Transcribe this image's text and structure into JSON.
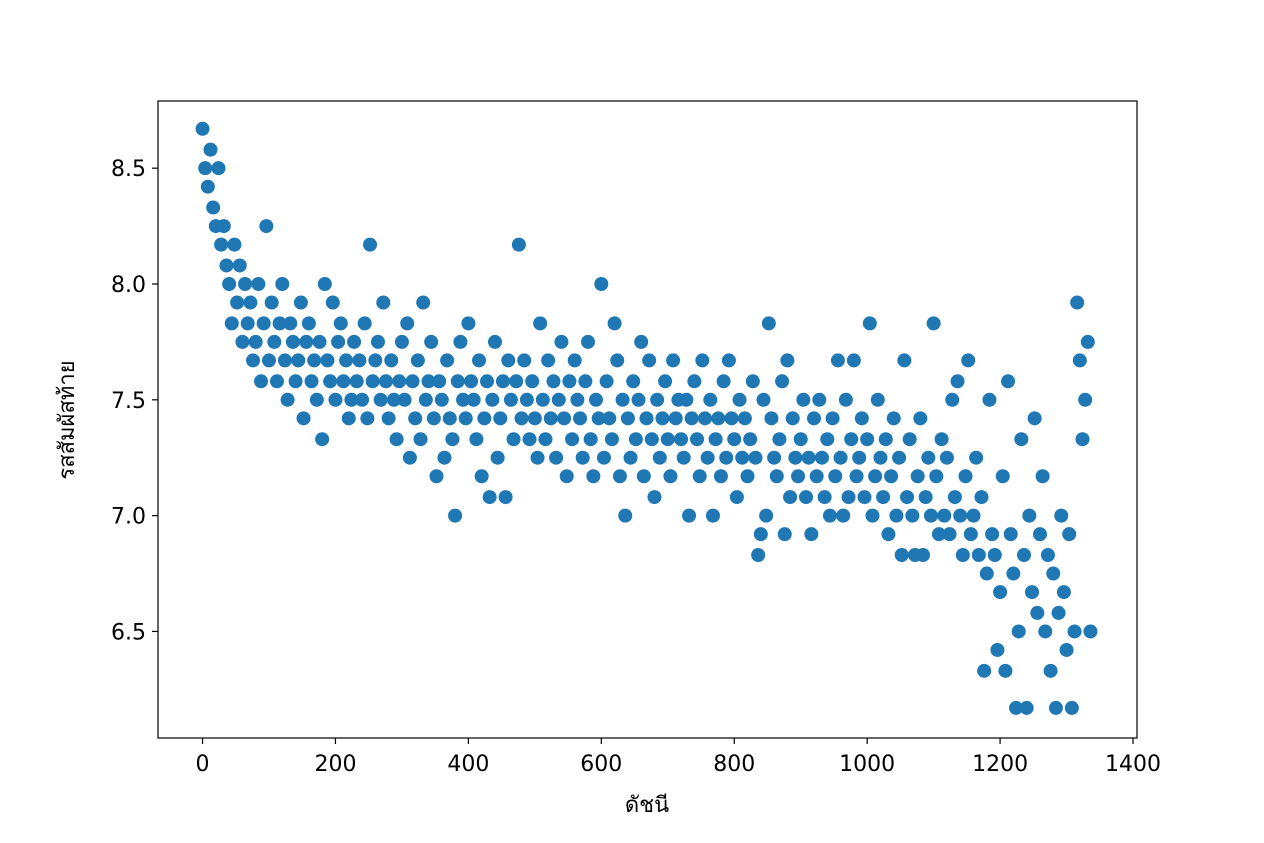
{
  "chart_data": {
    "type": "scatter",
    "color": "#1f77b4",
    "x_label": "ดัชนี",
    "y_label": "รสสัมผัสท้าย",
    "xlim": [
      -67,
      1406
    ],
    "ylim": [
      6.04,
      8.79
    ],
    "xticks": [
      0,
      200,
      400,
      600,
      800,
      1000,
      1200,
      1400
    ],
    "yticks": [
      6.5,
      {
        "value": 7,
        "label": "7.0"
      },
      7.5,
      {
        "value": 8,
        "label": "8.0"
      },
      8.5
    ],
    "x": [
      0,
      4,
      8,
      12,
      16,
      20,
      24,
      28,
      32,
      36,
      40,
      44,
      48,
      52,
      56,
      60,
      64,
      68,
      72,
      76,
      80,
      84,
      88,
      92,
      96,
      100,
      104,
      108,
      112,
      116,
      120,
      124,
      128,
      132,
      136,
      140,
      144,
      148,
      152,
      156,
      160,
      164,
      168,
      172,
      176,
      180,
      184,
      188,
      192,
      196,
      200,
      204,
      208,
      212,
      216,
      220,
      224,
      228,
      232,
      236,
      240,
      244,
      248,
      252,
      256,
      260,
      264,
      268,
      272,
      276,
      280,
      284,
      288,
      292,
      296,
      300,
      304,
      308,
      312,
      316,
      320,
      324,
      328,
      332,
      336,
      340,
      344,
      348,
      352,
      356,
      360,
      364,
      368,
      372,
      376,
      380,
      384,
      388,
      392,
      396,
      400,
      404,
      408,
      412,
      416,
      420,
      424,
      428,
      432,
      436,
      440,
      444,
      448,
      452,
      456,
      460,
      464,
      468,
      472,
      476,
      480,
      484,
      488,
      492,
      496,
      500,
      504,
      508,
      512,
      516,
      520,
      524,
      528,
      532,
      536,
      540,
      544,
      548,
      552,
      556,
      560,
      564,
      568,
      572,
      576,
      580,
      584,
      588,
      592,
      596,
      600,
      604,
      608,
      612,
      616,
      620,
      624,
      628,
      632,
      636,
      640,
      644,
      648,
      652,
      656,
      660,
      664,
      668,
      672,
      676,
      680,
      684,
      688,
      692,
      696,
      700,
      704,
      708,
      712,
      716,
      720,
      724,
      728,
      732,
      736,
      740,
      744,
      748,
      752,
      756,
      760,
      764,
      768,
      772,
      776,
      780,
      784,
      788,
      792,
      796,
      800,
      804,
      808,
      812,
      816,
      820,
      824,
      828,
      832,
      836,
      840,
      844,
      848,
      852,
      856,
      860,
      864,
      868,
      872,
      876,
      880,
      884,
      888,
      892,
      896,
      900,
      904,
      908,
      912,
      916,
      920,
      924,
      928,
      932,
      936,
      940,
      944,
      948,
      952,
      956,
      960,
      964,
      968,
      972,
      976,
      980,
      984,
      988,
      992,
      996,
      1000,
      1004,
      1008,
      1012,
      1016,
      1020,
      1024,
      1028,
      1032,
      1036,
      1040,
      1044,
      1048,
      1052,
      1056,
      1060,
      1064,
      1068,
      1072,
      1076,
      1080,
      1084,
      1088,
      1092,
      1096,
      1100,
      1104,
      1108,
      1112,
      1116,
      1120,
      1124,
      1128,
      1132,
      1136,
      1140,
      1144,
      1148,
      1152,
      1156,
      1160,
      1164,
      1168,
      1172,
      1176,
      1180,
      1184,
      1188,
      1192,
      1196,
      1200,
      1204,
      1208,
      1212,
      1216,
      1220,
      1224,
      1228,
      1232,
      1236,
      1240,
      1244,
      1248,
      1252,
      1256,
      1260,
      1264,
      1268,
      1272,
      1276,
      1280,
      1284,
      1288,
      1292,
      1296,
      1300,
      1304,
      1308,
      1312,
      1316,
      1320,
      1324,
      1328,
      1332,
      1336
    ],
    "values": [
      8.67,
      8.5,
      8.42,
      8.58,
      8.33,
      8.25,
      8.5,
      8.17,
      8.25,
      8.08,
      8.0,
      7.83,
      8.17,
      7.92,
      8.08,
      7.75,
      8.0,
      7.83,
      7.92,
      7.67,
      7.75,
      8.0,
      7.58,
      7.83,
      8.25,
      7.67,
      7.92,
      7.75,
      7.58,
      7.83,
      8.0,
      7.67,
      7.5,
      7.83,
      7.75,
      7.58,
      7.67,
      7.92,
      7.42,
      7.75,
      7.83,
      7.58,
      7.67,
      7.5,
      7.75,
      7.33,
      8.0,
      7.67,
      7.58,
      7.92,
      7.5,
      7.75,
      7.83,
      7.58,
      7.67,
      7.42,
      7.5,
      7.75,
      7.58,
      7.67,
      7.5,
      7.83,
      7.42,
      8.17,
      7.58,
      7.67,
      7.75,
      7.5,
      7.92,
      7.58,
      7.42,
      7.67,
      7.5,
      7.33,
      7.58,
      7.75,
      7.5,
      7.83,
      7.25,
      7.58,
      7.42,
      7.67,
      7.33,
      7.92,
      7.5,
      7.58,
      7.75,
      7.42,
      7.17,
      7.58,
      7.5,
      7.25,
      7.67,
      7.42,
      7.33,
      7.0,
      7.58,
      7.75,
      7.5,
      7.42,
      7.83,
      7.58,
      7.5,
      7.33,
      7.67,
      7.17,
      7.42,
      7.58,
      7.08,
      7.5,
      7.75,
      7.25,
      7.42,
      7.58,
      7.08,
      7.67,
      7.5,
      7.33,
      7.58,
      8.17,
      7.42,
      7.67,
      7.5,
      7.33,
      7.58,
      7.42,
      7.25,
      7.83,
      7.5,
      7.33,
      7.67,
      7.42,
      7.58,
      7.25,
      7.5,
      7.75,
      7.42,
      7.17,
      7.58,
      7.33,
      7.67,
      7.5,
      7.42,
      7.25,
      7.58,
      7.75,
      7.33,
      7.17,
      7.5,
      7.42,
      8.0,
      7.25,
      7.58,
      7.42,
      7.33,
      7.83,
      7.67,
      7.17,
      7.5,
      7.0,
      7.42,
      7.25,
      7.58,
      7.33,
      7.5,
      7.75,
      7.17,
      7.42,
      7.67,
      7.33,
      7.08,
      7.5,
      7.25,
      7.42,
      7.58,
      7.33,
      7.17,
      7.67,
      7.42,
      7.5,
      7.33,
      7.25,
      7.5,
      7.0,
      7.42,
      7.58,
      7.33,
      7.17,
      7.67,
      7.42,
      7.25,
      7.5,
      7.0,
      7.33,
      7.42,
      7.17,
      7.58,
      7.25,
      7.67,
      7.42,
      7.33,
      7.08,
      7.5,
      7.25,
      7.42,
      7.17,
      7.33,
      7.58,
      7.25,
      6.83,
      6.92,
      7.5,
      7.0,
      7.83,
      7.42,
      7.25,
      7.17,
      7.33,
      7.58,
      6.92,
      7.67,
      7.08,
      7.42,
      7.25,
      7.17,
      7.33,
      7.5,
      7.08,
      7.25,
      6.92,
      7.42,
      7.17,
      7.5,
      7.25,
      7.08,
      7.33,
      7.0,
      7.42,
      7.17,
      7.67,
      7.25,
      7.0,
      7.5,
      7.08,
      7.33,
      7.67,
      7.17,
      7.25,
      7.42,
      7.08,
      7.33,
      7.83,
      7.0,
      7.17,
      7.5,
      7.25,
      7.08,
      7.33,
      6.92,
      7.17,
      7.42,
      7.0,
      7.25,
      6.83,
      7.67,
      7.08,
      7.33,
      7.0,
      6.83,
      7.17,
      7.42,
      6.83,
      7.08,
      7.25,
      7.0,
      7.83,
      7.17,
      6.92,
      7.33,
      7.0,
      7.25,
      6.92,
      7.5,
      7.08,
      7.58,
      7.0,
      6.83,
      7.17,
      7.67,
      6.92,
      7.0,
      7.25,
      6.83,
      7.08,
      6.33,
      6.75,
      7.5,
      6.92,
      6.83,
      6.42,
      6.67,
      7.17,
      6.33,
      7.58,
      6.92,
      6.75,
      6.17,
      6.5,
      7.33,
      6.83,
      6.17,
      7.0,
      6.67,
      7.42,
      6.58,
      6.92,
      7.17,
      6.5,
      6.83,
      6.33,
      6.75,
      6.17,
      6.58,
      7.0,
      6.67,
      6.42,
      6.92,
      6.17,
      6.5,
      7.92,
      7.67,
      7.33,
      7.5,
      7.75,
      6.5
    ]
  }
}
